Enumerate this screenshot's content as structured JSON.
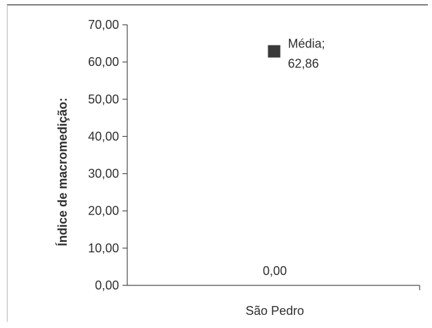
{
  "chart_data": {
    "type": "scatter",
    "ylabel": "Índice de macromedição:",
    "xlabel": "",
    "categories": [
      "São Pedro"
    ],
    "ylim": [
      0,
      70
    ],
    "yticks": [
      "0,00",
      "10,00",
      "20,00",
      "30,00",
      "40,00",
      "50,00",
      "60,00",
      "70,00"
    ],
    "series": [
      {
        "name": "Média",
        "values": [
          62.86
        ],
        "label_lines": [
          "Média;",
          "62,86"
        ],
        "marker": "square",
        "color": "#3a3a3a"
      }
    ],
    "annotations": [
      {
        "text": "0,00",
        "y": 0
      }
    ],
    "grid": false,
    "legend": "none"
  }
}
